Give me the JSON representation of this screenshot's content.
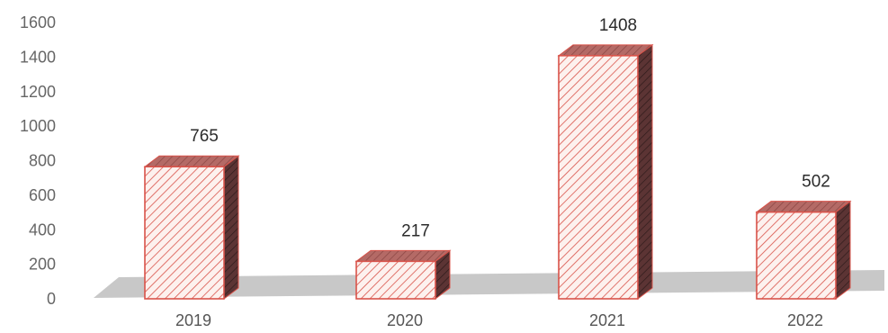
{
  "chart_data": {
    "type": "bar",
    "categories": [
      "2019",
      "2020",
      "2021",
      "2022"
    ],
    "values": [
      765,
      217,
      1408,
      502
    ],
    "data_labels": [
      "765",
      "217",
      "1408",
      "502"
    ],
    "y_ticks": [
      "0",
      "200",
      "400",
      "600",
      "800",
      "1000",
      "1200",
      "1400",
      "1600"
    ],
    "ylim": [
      0,
      1600
    ],
    "title": "",
    "xlabel": "",
    "ylabel": "",
    "grid": false,
    "legend": "none",
    "style": "3d-hatched",
    "colors": {
      "bar_edge": "#d9534a",
      "bar_fill": "#fdf1ee",
      "hatch": "#d9534a",
      "bar_top": "#b46a66",
      "bar_side": "#5c3434",
      "floor": "#c8c8c8"
    }
  }
}
